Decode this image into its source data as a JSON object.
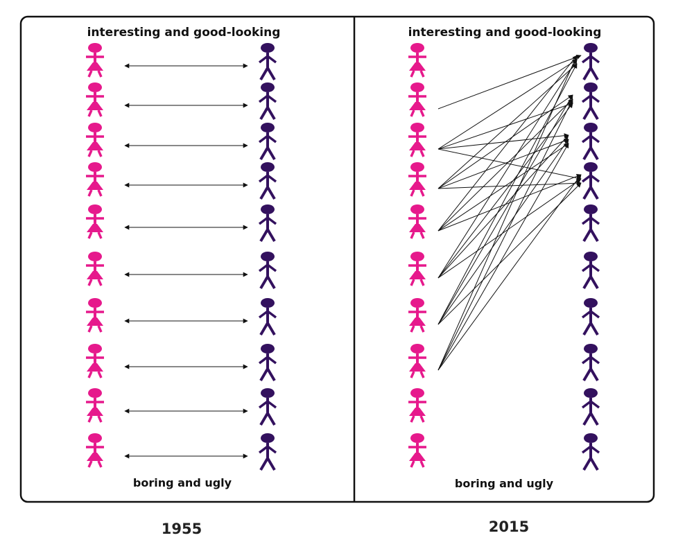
{
  "colors": {
    "woman": "#e6198c",
    "man": "#33115e",
    "arrow": "#111111",
    "frame": "#111111"
  },
  "panels": [
    {
      "id": "1955",
      "top_label": "interesting and good-looking",
      "bottom_label": "boring and ugly",
      "year": "1955",
      "pairing": "one-to-one",
      "connections": [
        [
          0,
          0
        ],
        [
          1,
          1
        ],
        [
          2,
          2
        ],
        [
          3,
          3
        ],
        [
          4,
          4
        ],
        [
          5,
          5
        ],
        [
          6,
          6
        ],
        [
          7,
          7
        ],
        [
          8,
          8
        ],
        [
          9,
          9
        ]
      ]
    },
    {
      "id": "2015",
      "top_label": "interesting and good-looking",
      "bottom_label": "boring and ugly",
      "year": "2015",
      "pairing": "many-to-few",
      "connections": [
        [
          1,
          0
        ],
        [
          2,
          0
        ],
        [
          2,
          1
        ],
        [
          2,
          2
        ],
        [
          2,
          3
        ],
        [
          3,
          0
        ],
        [
          3,
          1
        ],
        [
          3,
          2
        ],
        [
          3,
          3
        ],
        [
          4,
          0
        ],
        [
          4,
          1
        ],
        [
          4,
          2
        ],
        [
          4,
          3
        ],
        [
          5,
          0
        ],
        [
          5,
          1
        ],
        [
          5,
          2
        ],
        [
          5,
          3
        ],
        [
          6,
          0
        ],
        [
          6,
          1
        ],
        [
          6,
          2
        ],
        [
          6,
          3
        ],
        [
          7,
          0
        ],
        [
          7,
          1
        ],
        [
          7,
          2
        ],
        [
          7,
          3
        ]
      ]
    }
  ]
}
